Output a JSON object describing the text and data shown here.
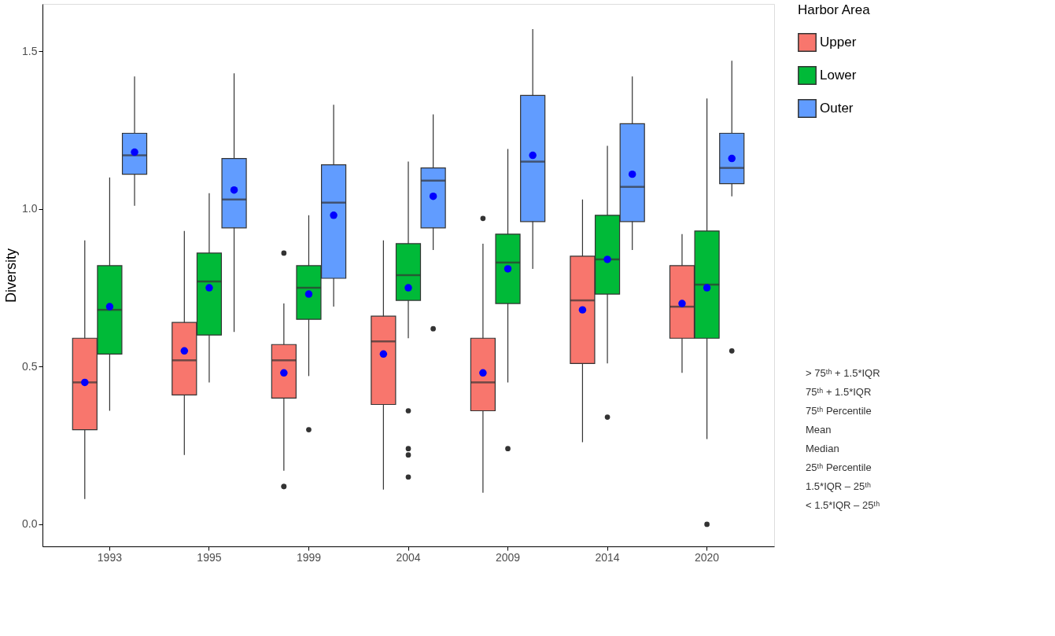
{
  "chart_data": {
    "type": "box",
    "ylabel": "Diversity",
    "legend_title": "Harbor Area",
    "legend": "right",
    "grid": false,
    "categories": [
      "1993",
      "1995",
      "1999",
      "2004",
      "2009",
      "2014",
      "2020"
    ],
    "ylim": [
      -0.07,
      1.65
    ],
    "yticks": [
      {
        "value": 0,
        "label": "0.0"
      },
      0.5,
      {
        "value": 1,
        "label": "1.0"
      },
      1.5
    ],
    "series": [
      {
        "name": "Upper",
        "color": "#f8766d",
        "boxes": [
          {
            "low": 0.08,
            "q1": 0.3,
            "median": 0.45,
            "q3": 0.59,
            "high": 0.9,
            "mean": 0.45
          },
          {
            "low": 0.22,
            "q1": 0.41,
            "median": 0.52,
            "q3": 0.64,
            "high": 0.93,
            "mean": 0.55
          },
          {
            "low": 0.17,
            "q1": 0.4,
            "median": 0.52,
            "q3": 0.57,
            "high": 0.7,
            "mean": 0.48,
            "outliers": [
              0.86,
              0.12,
              0.12
            ]
          },
          {
            "low": 0.11,
            "q1": 0.38,
            "median": 0.58,
            "q3": 0.66,
            "high": 0.9,
            "mean": 0.54
          },
          {
            "low": 0.1,
            "q1": 0.36,
            "median": 0.45,
            "q3": 0.59,
            "high": 0.89,
            "mean": 0.48,
            "outliers": [
              0.97
            ]
          },
          {
            "low": 0.26,
            "q1": 0.51,
            "median": 0.71,
            "q3": 0.85,
            "high": 1.03,
            "mean": 0.68
          },
          {
            "low": 0.48,
            "q1": 0.59,
            "median": 0.69,
            "q3": 0.82,
            "high": 0.92,
            "mean": 0.7
          }
        ]
      },
      {
        "name": "Lower",
        "color": "#00ba38",
        "boxes": [
          {
            "low": 0.36,
            "q1": 0.54,
            "median": 0.68,
            "q3": 0.82,
            "high": 1.1,
            "mean": 0.69
          },
          {
            "low": 0.45,
            "q1": 0.6,
            "median": 0.77,
            "q3": 0.86,
            "high": 1.05,
            "mean": 0.75
          },
          {
            "low": 0.47,
            "q1": 0.65,
            "median": 0.75,
            "q3": 0.82,
            "high": 0.98,
            "mean": 0.73,
            "outliers": [
              0.3
            ]
          },
          {
            "low": 0.59,
            "q1": 0.71,
            "median": 0.79,
            "q3": 0.89,
            "high": 1.15,
            "mean": 0.75,
            "outliers": [
              0.36,
              0.24,
              0.22,
              0.15
            ]
          },
          {
            "low": 0.45,
            "q1": 0.7,
            "median": 0.83,
            "q3": 0.92,
            "high": 1.19,
            "mean": 0.81,
            "outliers": [
              0.24
            ]
          },
          {
            "low": 0.51,
            "q1": 0.73,
            "median": 0.84,
            "q3": 0.98,
            "high": 1.2,
            "mean": 0.84,
            "outliers": [
              0.34
            ]
          },
          {
            "low": 0.27,
            "q1": 0.59,
            "median": 0.76,
            "q3": 0.93,
            "high": 1.35,
            "mean": 0.75,
            "outliers": [
              0.0
            ]
          }
        ]
      },
      {
        "name": "Outer",
        "color": "#619cff",
        "boxes": [
          {
            "low": 1.01,
            "q1": 1.11,
            "median": 1.17,
            "q3": 1.24,
            "high": 1.42,
            "mean": 1.18
          },
          {
            "low": 0.61,
            "q1": 0.94,
            "median": 1.03,
            "q3": 1.16,
            "high": 1.43,
            "mean": 1.06
          },
          {
            "low": 0.69,
            "q1": 0.78,
            "median": 1.02,
            "q3": 1.14,
            "high": 1.33,
            "mean": 0.98
          },
          {
            "low": 0.87,
            "q1": 0.94,
            "median": 1.09,
            "q3": 1.13,
            "high": 1.3,
            "mean": 1.04,
            "outliers": [
              0.62
            ]
          },
          {
            "low": 0.81,
            "q1": 0.96,
            "median": 1.15,
            "q3": 1.36,
            "high": 1.57,
            "mean": 1.17
          },
          {
            "low": 0.87,
            "q1": 0.96,
            "median": 1.07,
            "q3": 1.27,
            "high": 1.42,
            "mean": 1.11
          },
          {
            "low": 1.04,
            "q1": 1.08,
            "median": 1.13,
            "q3": 1.24,
            "high": 1.47,
            "mean": 1.16,
            "outliers": [
              0.55
            ]
          }
        ]
      }
    ],
    "annotations": [
      "> 75ᵗʰ + 1.5*IQR",
      "75ᵗʰ + 1.5*IQR",
      "75ᵗʰ Percentile",
      "Mean",
      "Median",
      "25ᵗʰ Percentile",
      "1.5*IQR – 25ᵗʰ",
      "< 1.5*IQR – 25ᵗʰ"
    ]
  }
}
